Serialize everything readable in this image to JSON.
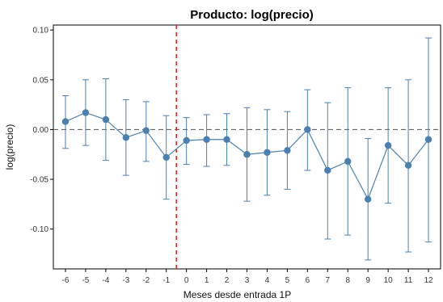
{
  "chart_data": {
    "type": "scatter",
    "title": "Producto: log(precio)",
    "xlabel": "Meses desde entrada 1P",
    "ylabel": "log(precio)",
    "x": [
      -6,
      -5,
      -4,
      -3,
      -2,
      -1,
      0,
      1,
      2,
      3,
      4,
      5,
      6,
      7,
      8,
      9,
      10,
      11,
      12
    ],
    "x_tick_labels": [
      "-6",
      "-5",
      "-4",
      "-3",
      "-2",
      "-1",
      "0",
      "1",
      "2",
      "3",
      "4",
      "5",
      "6",
      "7",
      "8",
      "9",
      "10",
      "11",
      "12"
    ],
    "y": [
      0.008,
      0.017,
      0.01,
      -0.008,
      -0.001,
      -0.028,
      -0.011,
      -0.01,
      -0.01,
      -0.025,
      -0.023,
      -0.021,
      0.0,
      -0.041,
      -0.032,
      -0.07,
      -0.016,
      -0.036,
      -0.01
    ],
    "ci_lower": [
      -0.019,
      -0.016,
      -0.031,
      -0.046,
      -0.032,
      -0.07,
      -0.035,
      -0.037,
      -0.036,
      -0.072,
      -0.066,
      -0.06,
      -0.041,
      -0.11,
      -0.106,
      -0.131,
      -0.074,
      -0.123,
      -0.113
    ],
    "ci_upper": [
      0.034,
      0.05,
      0.051,
      0.03,
      0.028,
      0.014,
      0.012,
      0.015,
      0.016,
      0.022,
      0.02,
      0.018,
      0.04,
      0.027,
      0.042,
      -0.009,
      0.042,
      0.05,
      0.092
    ],
    "y_ticks": [
      0.1,
      0.05,
      0.0,
      -0.05,
      -0.1
    ],
    "y_tick_labels": [
      "0.10",
      "0.05",
      "0.00",
      "-0.05",
      "-0.10"
    ],
    "xlim": [
      -6.6,
      12.6
    ],
    "ylim": [
      -0.14,
      0.105
    ],
    "reference_hline": 0.0,
    "reference_vline": -0.5,
    "grid": false,
    "colors": {
      "series": "#4a7fb0",
      "vline": "#e31a1c",
      "hline": "#666666"
    }
  }
}
